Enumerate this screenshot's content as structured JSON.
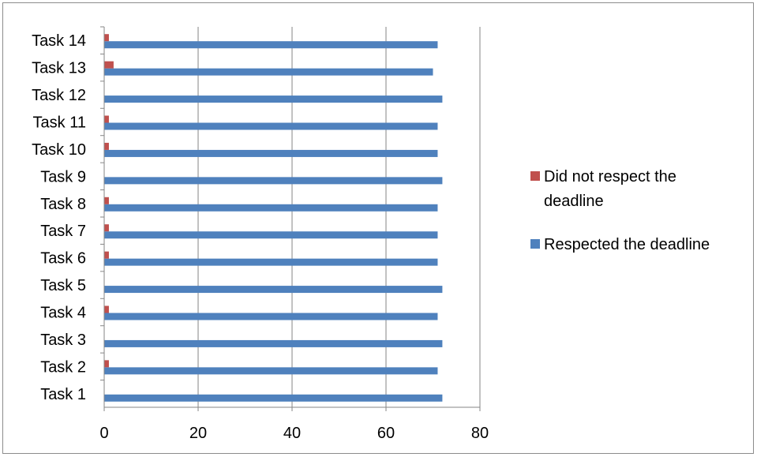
{
  "chart_data": {
    "type": "bar",
    "orientation": "horizontal",
    "categories": [
      "Task 1",
      "Task 2",
      "Task 3",
      "Task 4",
      "Task 5",
      "Task 6",
      "Task 7",
      "Task 8",
      "Task 9",
      "Task 10",
      "Task 11",
      "Task 12",
      "Task 13",
      "Task 14"
    ],
    "series": [
      {
        "name": "Respected the deadline",
        "color": "#4f81bd",
        "values": [
          72,
          71,
          72,
          71,
          72,
          71,
          71,
          71,
          72,
          71,
          71,
          72,
          70,
          71
        ]
      },
      {
        "name": "Did not respect the deadline",
        "color": "#c0504d",
        "values": [
          0,
          1,
          0,
          1,
          0,
          1,
          1,
          1,
          0,
          1,
          1,
          0,
          2,
          1
        ]
      }
    ],
    "legend": {
      "position": "right",
      "entries": [
        {
          "lines": [
            "Did not respect the",
            "deadline"
          ],
          "color": "#c0504d"
        },
        {
          "lines": [
            "Respected the deadline"
          ],
          "color": "#4f81bd"
        }
      ]
    },
    "xlim": [
      0,
      80
    ],
    "xticks": [
      0,
      20,
      40,
      60,
      80
    ],
    "grid": "vertical",
    "title": "",
    "xlabel": "",
    "ylabel": ""
  }
}
